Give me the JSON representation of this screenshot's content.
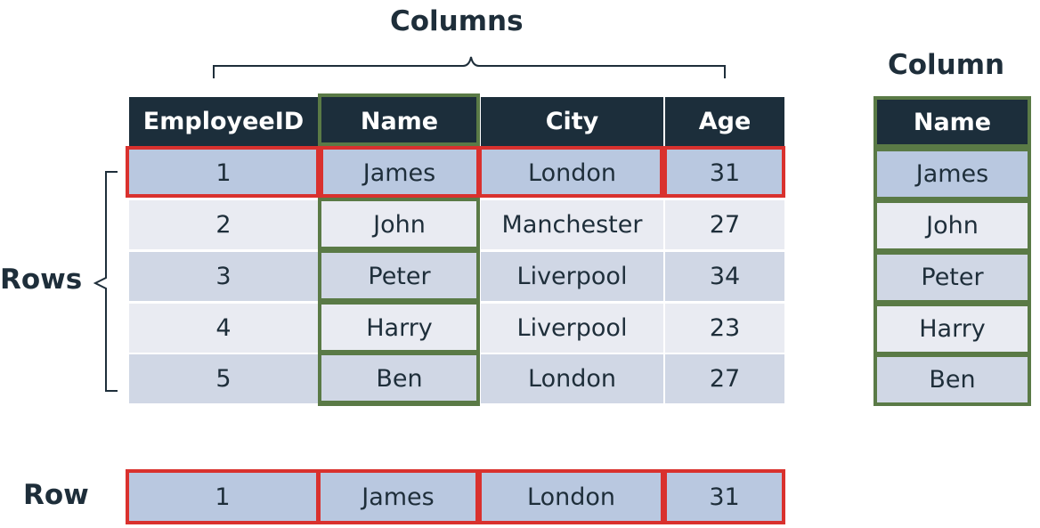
{
  "labels": {
    "columns": "Columns",
    "column": "Column",
    "rows": "Rows",
    "row": "Row"
  },
  "table": {
    "headers": [
      "EmployeeID",
      "Name",
      "City",
      "Age"
    ],
    "rows": [
      [
        "1",
        "James",
        "London",
        "31"
      ],
      [
        "2",
        "John",
        "Manchester",
        "27"
      ],
      [
        "3",
        "Peter",
        "Liverpool",
        "34"
      ],
      [
        "4",
        "Harry",
        "Liverpool",
        "23"
      ],
      [
        "5",
        "Ben",
        "London",
        "27"
      ]
    ]
  },
  "single_column": {
    "header": "Name",
    "values": [
      "James",
      "John",
      "Peter",
      "Harry",
      "Ben"
    ]
  },
  "single_row": {
    "values": [
      "1",
      "James",
      "London",
      "31"
    ]
  },
  "colors": {
    "header_bg": "#1c2e3b",
    "column_highlight": "#5a7a46",
    "row_highlight": "#d9312e",
    "text": "#1e2e3a"
  }
}
